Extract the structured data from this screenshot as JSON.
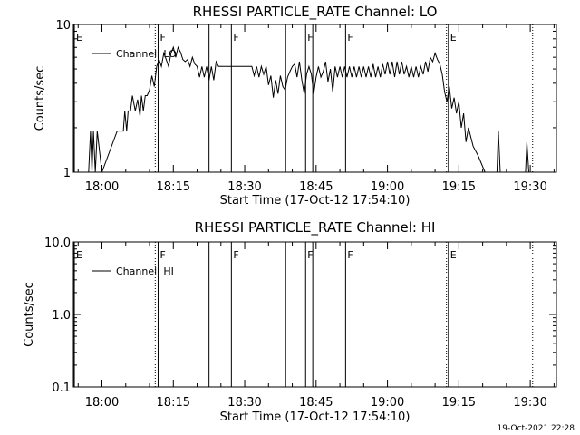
{
  "footer": {
    "timestamp": "19-Oct-2021 22:28"
  },
  "chart_data": [
    {
      "type": "line",
      "title": "RHESSI PARTICLE_RATE Channel: LO",
      "xlabel": "Start Time (17-Oct-12 17:54:10)",
      "ylabel": "Counts/sec",
      "x_unit": "minutes from 17:54:10",
      "xlim": [
        0,
        101.5
      ],
      "ylim": [
        1,
        10
      ],
      "yscale": "log",
      "xticks": [
        6,
        21,
        36,
        51,
        66,
        81,
        96
      ],
      "xtick_labels": [
        "18:00",
        "18:15",
        "18:30",
        "18:45",
        "19:00",
        "19:15",
        "19:30"
      ],
      "ytick_values": [
        1,
        10
      ],
      "ytick_labels": [
        "1",
        "10"
      ],
      "legend": {
        "position": "top-left",
        "label": "Channel: LO"
      },
      "markers": [
        {
          "x": 0.2,
          "label": "E",
          "style": "solid"
        },
        {
          "x": 17.8,
          "label": "F",
          "style": "solid"
        },
        {
          "x": 28.5,
          "label": "",
          "style": "solid"
        },
        {
          "x": 33.2,
          "label": "F",
          "style": "solid"
        },
        {
          "x": 44.6,
          "label": "",
          "style": "solid"
        },
        {
          "x": 48.8,
          "label": "F",
          "style": "solid"
        },
        {
          "x": 50.3,
          "label": "",
          "style": "solid"
        },
        {
          "x": 57.2,
          "label": "F",
          "style": "solid"
        },
        {
          "x": 78.8,
          "label": "E",
          "style": "solid"
        },
        {
          "x": 17.2,
          "label": "",
          "style": "dotted"
        },
        {
          "x": 78.4,
          "label": "",
          "style": "dotted"
        },
        {
          "x": 96.5,
          "label": "",
          "style": "dotted"
        }
      ],
      "series": [
        {
          "name": "Channel: LO",
          "x": [
            3.2,
            3.6,
            3.9,
            4.2,
            4.6,
            5.0,
            6.0,
            9.2,
            9.6,
            10.5,
            10.8,
            11.2,
            11.5,
            12.0,
            12.4,
            13.0,
            13.5,
            14.0,
            14.3,
            14.7,
            15.1,
            15.5,
            16.0,
            16.5,
            17.0,
            17.5,
            18.0,
            18.5,
            19.0,
            19.5,
            20.0,
            20.5,
            21.0,
            21.5,
            22.0,
            22.5,
            23.0,
            23.5,
            24.0,
            24.5,
            25.0,
            25.5,
            26.0,
            26.5,
            27.0,
            27.5,
            28.0,
            28.5,
            29.0,
            29.5,
            30.0,
            30.5,
            31.0,
            31.5,
            32.0,
            32.5,
            33.0,
            33.5,
            34.0,
            34.5,
            35.0,
            35.5,
            36.0,
            36.5,
            37.0,
            37.5,
            38.0,
            38.5,
            39.0,
            39.5,
            40.0,
            40.5,
            41.0,
            41.5,
            42.0,
            42.5,
            43.0,
            43.5,
            44.0,
            44.5,
            45.0,
            45.5,
            46.0,
            46.5,
            47.0,
            47.5,
            48.0,
            48.5,
            49.0,
            49.5,
            50.0,
            50.5,
            51.0,
            51.5,
            52.0,
            52.5,
            53.0,
            53.5,
            54.0,
            54.5,
            55.0,
            55.5,
            56.0,
            56.5,
            57.0,
            57.5,
            58.0,
            58.5,
            59.0,
            59.5,
            60.0,
            60.5,
            61.0,
            61.5,
            62.0,
            62.5,
            63.0,
            63.5,
            64.0,
            64.5,
            65.0,
            65.5,
            66.0,
            66.5,
            67.0,
            67.5,
            68.0,
            68.5,
            69.0,
            69.5,
            70.0,
            70.5,
            71.0,
            71.5,
            72.0,
            72.5,
            73.0,
            73.5,
            74.0,
            74.5,
            75.0,
            75.5,
            76.0,
            76.5,
            77.0,
            77.5,
            78.0,
            78.5,
            79.0,
            79.5,
            80.0,
            80.5,
            81.0,
            81.5,
            82.0,
            82.5,
            83.0,
            84.0,
            85.0,
            86.5,
            89.0,
            89.3,
            89.7,
            95.0,
            95.3,
            95.7,
            96.1
          ],
          "y": [
            1,
            1.9,
            1,
            1.9,
            1,
            1.9,
            1,
            1.9,
            1.9,
            1.9,
            2.6,
            1.9,
            2.6,
            2.6,
            3.3,
            2.6,
            3.1,
            2.4,
            3.3,
            2.6,
            3.3,
            3.3,
            3.6,
            4.5,
            3.8,
            5.2,
            5.8,
            5.2,
            6.4,
            5.8,
            5.2,
            6.4,
            7,
            6,
            7,
            6.5,
            5.8,
            5.6,
            5.8,
            5.2,
            6,
            5.4,
            5.2,
            4.4,
            5.2,
            4.4,
            5.2,
            4.2,
            5.2,
            4.2,
            5.6,
            5.2,
            5.2,
            5.2,
            5.2,
            5.2,
            5.2,
            5.2,
            5.2,
            5.2,
            5.2,
            5.2,
            5.2,
            5.2,
            5.2,
            5.2,
            4.5,
            5.2,
            4.4,
            5.2,
            4.6,
            5.2,
            3.9,
            4.5,
            3.2,
            4.2,
            3.4,
            4.5,
            3.8,
            3.6,
            4.4,
            4.8,
            5.2,
            5.4,
            4.4,
            5.6,
            4.2,
            3.4,
            4.6,
            5.2,
            4.6,
            3.4,
            4.4,
            5.2,
            4.4,
            4.8,
            5.6,
            4.1,
            5.0,
            3.5,
            5.2,
            4.4,
            5.2,
            4.4,
            5.2,
            4.4,
            5.2,
            4.4,
            5.2,
            4.4,
            5.2,
            4.4,
            5.2,
            4.4,
            5.2,
            4.4,
            5.4,
            4.4,
            5.2,
            4.4,
            5.4,
            4.6,
            5.6,
            4.6,
            5.6,
            4.4,
            5.6,
            4.6,
            5.6,
            4.6,
            5.2,
            4.4,
            5.2,
            4.4,
            5.2,
            4.4,
            5.2,
            4.6,
            5.6,
            4.8,
            6.0,
            5.6,
            6.4,
            5.8,
            5.4,
            4.6,
            3.5,
            3.0,
            3.8,
            2.7,
            3.2,
            2.5,
            3.0,
            2.0,
            2.5,
            1.6,
            2.0,
            1.5,
            1.3,
            1.0,
            1.0,
            1.9,
            1.0,
            1.0,
            1.6,
            1.0,
            1.0
          ]
        }
      ]
    },
    {
      "type": "line",
      "title": "RHESSI PARTICLE_RATE Channel: HI",
      "xlabel": "Start Time (17-Oct-12 17:54:10)",
      "ylabel": "Counts/sec",
      "x_unit": "minutes from 17:54:10",
      "xlim": [
        0,
        101.5
      ],
      "ylim": [
        0.1,
        10
      ],
      "yscale": "log",
      "xticks": [
        6,
        21,
        36,
        51,
        66,
        81,
        96
      ],
      "xtick_labels": [
        "18:00",
        "18:15",
        "18:30",
        "18:45",
        "19:00",
        "19:15",
        "19:30"
      ],
      "ytick_values": [
        0.1,
        1,
        10
      ],
      "ytick_labels": [
        "0.1",
        "1.0",
        "10.0"
      ],
      "legend": {
        "position": "top-left",
        "label": "Channel: HI"
      },
      "markers": [
        {
          "x": 0.2,
          "label": "E",
          "style": "solid"
        },
        {
          "x": 17.8,
          "label": "F",
          "style": "solid"
        },
        {
          "x": 28.5,
          "label": "",
          "style": "solid"
        },
        {
          "x": 33.2,
          "label": "F",
          "style": "solid"
        },
        {
          "x": 44.6,
          "label": "",
          "style": "solid"
        },
        {
          "x": 48.8,
          "label": "F",
          "style": "solid"
        },
        {
          "x": 50.3,
          "label": "",
          "style": "solid"
        },
        {
          "x": 57.2,
          "label": "F",
          "style": "solid"
        },
        {
          "x": 78.8,
          "label": "E",
          "style": "solid"
        },
        {
          "x": 17.2,
          "label": "",
          "style": "dotted"
        },
        {
          "x": 78.4,
          "label": "",
          "style": "dotted"
        },
        {
          "x": 96.5,
          "label": "",
          "style": "dotted"
        }
      ],
      "series": [
        {
          "name": "Channel: HI",
          "x": [],
          "y": []
        }
      ]
    }
  ]
}
